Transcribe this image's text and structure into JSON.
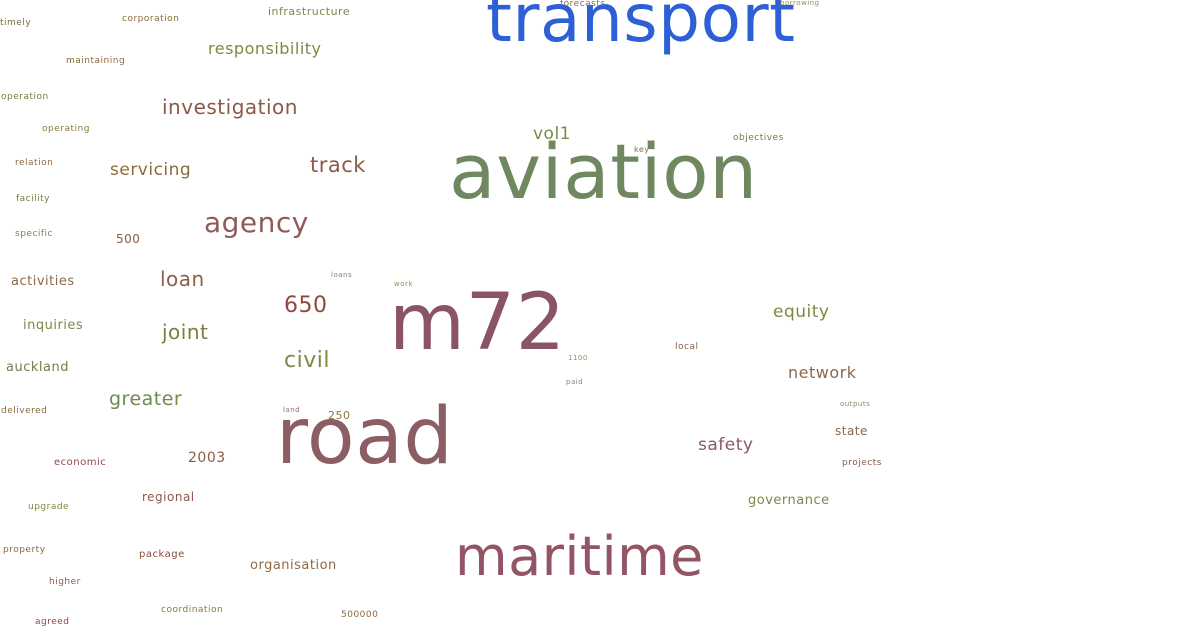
{
  "words": [
    {
      "text": "transport",
      "color": "#2d5fd6"
    },
    {
      "text": "aviation",
      "color": "#6f8860"
    },
    {
      "text": "m72",
      "color": "#8a5464"
    },
    {
      "text": "road",
      "color": "#8a5e62"
    },
    {
      "text": "maritime",
      "color": "#935464"
    },
    {
      "text": "agency",
      "color": "#8f5a5a"
    },
    {
      "text": "investigation",
      "color": "#8c5a48"
    },
    {
      "text": "responsibility",
      "color": "#7d8a3c"
    },
    {
      "text": "track",
      "color": "#8c5a48"
    },
    {
      "text": "servicing",
      "color": "#8c6a3c"
    },
    {
      "text": "loan",
      "color": "#8a6048"
    },
    {
      "text": "joint",
      "color": "#7e7e3c"
    },
    {
      "text": "650",
      "color": "#8c4a3c"
    },
    {
      "text": "civil",
      "color": "#7a8a48"
    },
    {
      "text": "greater",
      "color": "#6e8a4c"
    },
    {
      "text": "2003",
      "color": "#8c5a48"
    },
    {
      "text": "vol1",
      "color": "#7a8a4c"
    },
    {
      "text": "equity",
      "color": "#7a8a3c"
    },
    {
      "text": "network",
      "color": "#8a6a4c"
    },
    {
      "text": "safety",
      "color": "#8a5a64"
    },
    {
      "text": "state",
      "color": "#8a6a4c"
    },
    {
      "text": "governance",
      "color": "#7a8a4c"
    },
    {
      "text": "organisation",
      "color": "#8c6a48"
    },
    {
      "text": "infrastructure",
      "color": "#7a8a4c"
    },
    {
      "text": "corporation",
      "color": "#8c6a3c"
    },
    {
      "text": "timely",
      "color": "#7a6a3c"
    },
    {
      "text": "maintaining",
      "color": "#8a6a3c"
    },
    {
      "text": "operation",
      "color": "#7a7a3c"
    },
    {
      "text": "operating",
      "color": "#8a7a3c"
    },
    {
      "text": "relation",
      "color": "#8a6a48"
    },
    {
      "text": "facility",
      "color": "#7a7a3c"
    },
    {
      "text": "specific",
      "color": "#6e8a4c"
    },
    {
      "text": "500",
      "color": "#8c5a48"
    },
    {
      "text": "activities",
      "color": "#8a6a48"
    },
    {
      "text": "inquiries",
      "color": "#7a8a4c"
    },
    {
      "text": "auckland",
      "color": "#7a7a4c"
    },
    {
      "text": "delivered",
      "color": "#8a6a3c"
    },
    {
      "text": "economic",
      "color": "#8c4a48"
    },
    {
      "text": "regional",
      "color": "#8c5a48"
    },
    {
      "text": "upgrade",
      "color": "#7a8a3c"
    },
    {
      "text": "property",
      "color": "#8a6a3c"
    },
    {
      "text": "package",
      "color": "#8c4a3c"
    },
    {
      "text": "higher",
      "color": "#8c5a48"
    },
    {
      "text": "coordination",
      "color": "#8a7a3c"
    },
    {
      "text": "agreed",
      "color": "#8c4a48"
    },
    {
      "text": "500000",
      "color": "#8a6a48"
    },
    {
      "text": "forecasts",
      "color": "#8a6a48"
    },
    {
      "text": "borrowing",
      "color": "#9a8a5c"
    },
    {
      "text": "objectives",
      "color": "#7a7a3c"
    },
    {
      "text": "key",
      "color": "#8a6a48"
    },
    {
      "text": "loans",
      "color": "#8c7a6a"
    },
    {
      "text": "work",
      "color": "#9a8a5c"
    },
    {
      "text": "local",
      "color": "#8c5a48"
    },
    {
      "text": "1100",
      "color": "#9a8a5c"
    },
    {
      "text": "paid",
      "color": "#9a7a6a"
    },
    {
      "text": "outputs",
      "color": "#8a8a5c"
    },
    {
      "text": "projects",
      "color": "#8a5a48"
    },
    {
      "text": "land",
      "color": "#9a6a6a"
    },
    {
      "text": "250",
      "color": "#8a7a3c"
    }
  ]
}
